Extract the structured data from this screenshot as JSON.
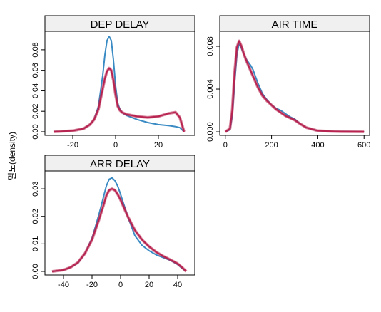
{
  "ylabel": "밀도(density)",
  "colors": {
    "observed": "#3a8bc4",
    "imputed": "#b8234f",
    "strip_bg": "#f0f0f0"
  },
  "chart_data": [
    {
      "type": "line",
      "title": "DEP_DELAY",
      "xlim": [
        -33,
        37
      ],
      "ylim": [
        -0.0035,
        0.098
      ],
      "x_ticks": [
        -20,
        0,
        20
      ],
      "y_ticks": [
        0.0,
        0.02,
        0.04,
        0.06,
        0.08
      ],
      "y_tick_labels": [
        "0.00",
        "0.02",
        "0.04",
        "0.06",
        "0.08"
      ],
      "series": [
        {
          "role": "observed",
          "x": [
            -29,
            -20,
            -15,
            -12,
            -10,
            -8,
            -6,
            -5,
            -4,
            -3,
            -2,
            -1,
            0,
            1,
            2,
            3,
            5,
            10,
            15,
            20,
            25,
            28,
            30,
            32
          ],
          "values": [
            0,
            0.001,
            0.003,
            0.007,
            0.012,
            0.025,
            0.055,
            0.075,
            0.089,
            0.093,
            0.089,
            0.07,
            0.045,
            0.028,
            0.022,
            0.019,
            0.016,
            0.012,
            0.009,
            0.007,
            0.006,
            0.005,
            0.004,
            0
          ]
        },
        {
          "role": "imputed",
          "x": [
            -29,
            -20,
            -15,
            -12,
            -10,
            -8,
            -6,
            -5,
            -4,
            -3,
            -2,
            -1,
            0,
            1,
            2,
            3,
            5,
            10,
            15,
            20,
            25,
            28,
            30,
            32
          ],
          "values": [
            0,
            0.001,
            0.003,
            0.007,
            0.012,
            0.022,
            0.042,
            0.052,
            0.059,
            0.062,
            0.06,
            0.05,
            0.036,
            0.025,
            0.021,
            0.019,
            0.017,
            0.015,
            0.014,
            0.015,
            0.018,
            0.019,
            0.014,
            0
          ]
        }
      ]
    },
    {
      "type": "line",
      "title": "AIR_TIME",
      "xlim": [
        -24,
        624
      ],
      "ylim": [
        -0.00033,
        0.0094
      ],
      "x_ticks": [
        0,
        200,
        400,
        600
      ],
      "y_ticks": [
        0.0,
        0.004,
        0.008
      ],
      "y_tick_labels": [
        "0.000",
        "0.004",
        "0.008"
      ],
      "series": [
        {
          "role": "observed",
          "x": [
            0,
            20,
            30,
            40,
            50,
            60,
            70,
            80,
            90,
            100,
            110,
            120,
            140,
            160,
            180,
            200,
            220,
            240,
            260,
            280,
            300,
            320,
            350,
            400,
            450,
            500,
            550,
            600
          ],
          "values": [
            0,
            0.0002,
            0.0015,
            0.0045,
            0.0072,
            0.0083,
            0.0078,
            0.0073,
            0.0068,
            0.0065,
            0.0062,
            0.0058,
            0.0046,
            0.0036,
            0.003,
            0.0025,
            0.0022,
            0.002,
            0.0017,
            0.0014,
            0.0012,
            0.0008,
            0.0004,
            0.0001,
            5e-05,
            2e-05,
            1e-05,
            0
          ]
        },
        {
          "role": "imputed",
          "x": [
            0,
            20,
            30,
            40,
            50,
            60,
            70,
            80,
            90,
            100,
            110,
            120,
            140,
            160,
            180,
            200,
            220,
            240,
            260,
            280,
            300,
            320,
            350,
            400,
            450,
            500,
            550,
            600
          ],
          "values": [
            0,
            0.0003,
            0.002,
            0.0055,
            0.0079,
            0.0085,
            0.008,
            0.0073,
            0.0067,
            0.0062,
            0.0057,
            0.0052,
            0.0042,
            0.0034,
            0.0029,
            0.0025,
            0.0021,
            0.0018,
            0.0015,
            0.0013,
            0.0011,
            0.0008,
            0.0004,
            0.0001,
            5e-05,
            2e-05,
            1e-05,
            0
          ]
        }
      ]
    },
    {
      "type": "line",
      "title": "ARR_DELAY",
      "xlim": [
        -53,
        52
      ],
      "ylim": [
        -0.0013,
        0.0365
      ],
      "x_ticks": [
        -40,
        -20,
        0,
        20,
        40
      ],
      "y_ticks": [
        0.0,
        0.01,
        0.02,
        0.03
      ],
      "y_tick_labels": [
        "0.00",
        "0.01",
        "0.02",
        "0.03"
      ],
      "series": [
        {
          "role": "observed",
          "x": [
            -48,
            -40,
            -35,
            -30,
            -25,
            -20,
            -15,
            -12,
            -10,
            -8,
            -6,
            -4,
            -2,
            0,
            5,
            10,
            15,
            20,
            25,
            30,
            35,
            40,
            43,
            46
          ],
          "values": [
            0,
            0.0005,
            0.0015,
            0.003,
            0.0065,
            0.012,
            0.021,
            0.027,
            0.031,
            0.0335,
            0.034,
            0.033,
            0.031,
            0.028,
            0.02,
            0.013,
            0.0095,
            0.0075,
            0.006,
            0.005,
            0.004,
            0.0025,
            0.0012,
            0
          ]
        },
        {
          "role": "imputed",
          "x": [
            -48,
            -40,
            -35,
            -30,
            -25,
            -20,
            -15,
            -12,
            -10,
            -8,
            -6,
            -4,
            -2,
            0,
            5,
            10,
            15,
            20,
            25,
            30,
            35,
            40,
            43,
            46
          ],
          "values": [
            0,
            0.0005,
            0.0015,
            0.0032,
            0.0065,
            0.0115,
            0.019,
            0.024,
            0.0275,
            0.0295,
            0.03,
            0.0295,
            0.028,
            0.026,
            0.02,
            0.015,
            0.0115,
            0.009,
            0.007,
            0.0055,
            0.0042,
            0.0028,
            0.0015,
            0
          ]
        }
      ]
    }
  ]
}
